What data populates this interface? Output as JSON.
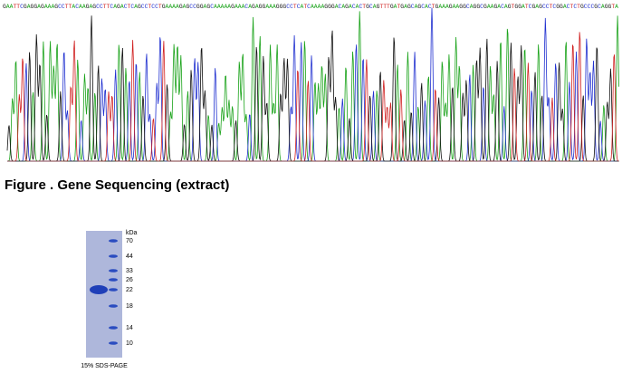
{
  "sequence": "GAATTCGAGGAGAAAGCCTTACAAGAGCCTTCAGACTCAGCCTCCTGAAAAGAGCCGGAGCAAAAAGAAACAGAGGAAAGGGCCTCATCAAAAGGGACAGACACTGCAGTTTGATGAGCAGCACTGAAAGAAGGCAGGCGAAGACAGTGGATCGAGCCTCGGACTCTGCCCGCAGGTA",
  "caption": "Figure . Gene Sequencing (extract)",
  "gel": {
    "unit": "kDa",
    "markers": [
      "70",
      "44",
      "33",
      "26",
      "22",
      "18",
      "14",
      "10"
    ],
    "caption": "15% SDS-PAGE"
  }
}
